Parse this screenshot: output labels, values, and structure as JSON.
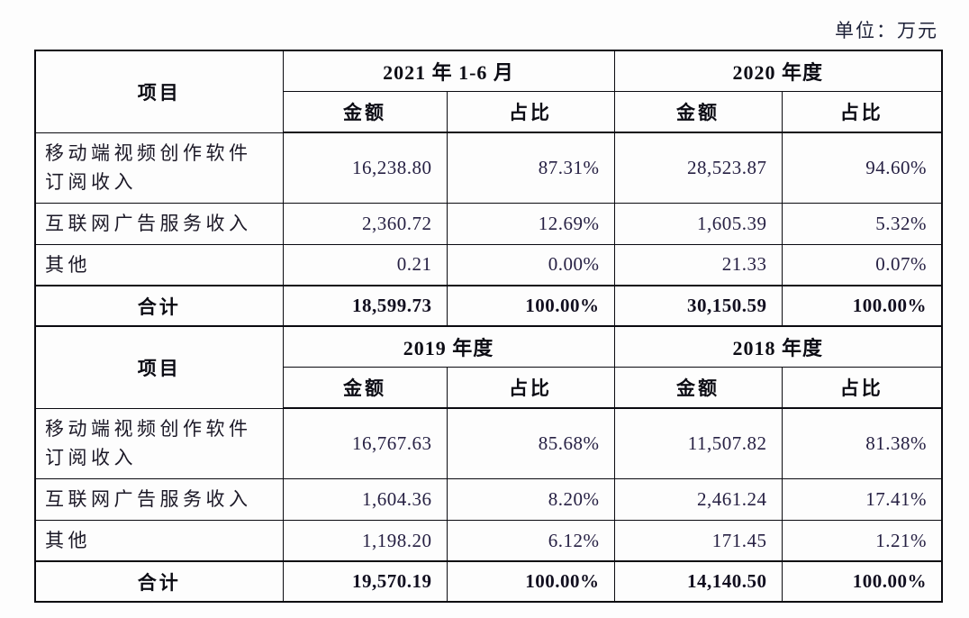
{
  "unit_label": "单位：万元",
  "tables": [
    {
      "item_header": "项目",
      "periods": [
        "2021 年 1-6 月",
        "2020 年度"
      ],
      "sub_cols": [
        "金额",
        "占比",
        "金额",
        "占比"
      ],
      "rows": [
        {
          "item": "移动端视频创作软件订阅收入",
          "cells": [
            "16,238.80",
            "87.31%",
            "28,523.87",
            "94.60%"
          ]
        },
        {
          "item": "互联网广告服务收入",
          "cells": [
            "2,360.72",
            "12.69%",
            "1,605.39",
            "5.32%"
          ]
        },
        {
          "item": "其他",
          "cells": [
            "0.21",
            "0.00%",
            "21.33",
            "0.07%"
          ]
        },
        {
          "item": "合计",
          "cells": [
            "18,599.73",
            "100.00%",
            "30,150.59",
            "100.00%"
          ]
        }
      ]
    },
    {
      "item_header": "项目",
      "periods": [
        "2019 年度",
        "2018 年度"
      ],
      "sub_cols": [
        "金额",
        "占比",
        "金额",
        "占比"
      ],
      "rows": [
        {
          "item": "移动端视频创作软件订阅收入",
          "cells": [
            "16,767.63",
            "85.68%",
            "11,507.82",
            "81.38%"
          ]
        },
        {
          "item": "互联网广告服务收入",
          "cells": [
            "1,604.36",
            "8.20%",
            "2,461.24",
            "17.41%"
          ]
        },
        {
          "item": "其他",
          "cells": [
            "1,198.20",
            "6.12%",
            "171.45",
            "1.21%"
          ]
        },
        {
          "item": "合计",
          "cells": [
            "19,570.19",
            "100.00%",
            "14,140.50",
            "100.00%"
          ]
        }
      ]
    }
  ]
}
